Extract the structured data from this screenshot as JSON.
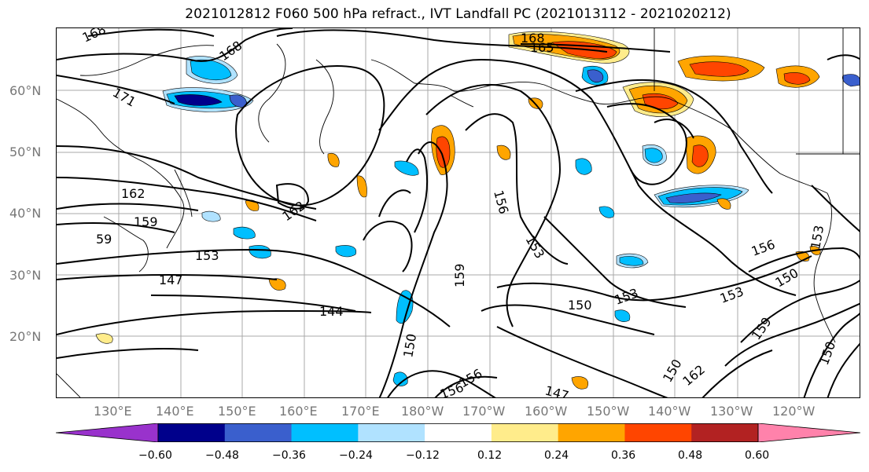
{
  "title": "2021012812 F060 500 hPa refract., IVT Landfall PC (2021013112 - 2021020212)",
  "lat_labels": [
    "60°N",
    "50°N",
    "40°N",
    "30°N",
    "20°N"
  ],
  "lon_labels": [
    "130°E",
    "140°E",
    "150°E",
    "160°E",
    "170°E",
    "180°W",
    "170°W",
    "160°W",
    "150°W",
    "140°W",
    "130°W",
    "120°W"
  ],
  "contour_labels": [
    "168",
    "168",
    "171",
    "168",
    "165",
    "162",
    "162",
    "159",
    "59",
    "153",
    "147",
    "144",
    "156",
    "153",
    "159",
    "150",
    "153",
    "156",
    "150",
    "153",
    "153",
    "159",
    "150",
    "162",
    "150",
    "147",
    "156",
    "156",
    "150"
  ],
  "colorbar": {
    "ticks": [
      "−0.60",
      "−0.48",
      "−0.36",
      "−0.24",
      "−0.12",
      "0.12",
      "0.24",
      "0.36",
      "0.48",
      "0.60"
    ],
    "colors": [
      "#9932cc",
      "#00008b",
      "#3a5fcd",
      "#00bfff",
      "#b0e2ff",
      "#ffffff",
      "#ffec8b",
      "#ffa500",
      "#ff4500",
      "#b22222",
      "#ff82ab"
    ]
  },
  "fill_colors": {
    "light_blue": "#b0e2ff",
    "blue": "#00bfff",
    "mid_blue": "#3a5fcd",
    "navy": "#00008b",
    "yellow": "#ffec8b",
    "orange": "#ffa500",
    "red_orange": "#ff4500",
    "dark_red": "#b22222"
  }
}
